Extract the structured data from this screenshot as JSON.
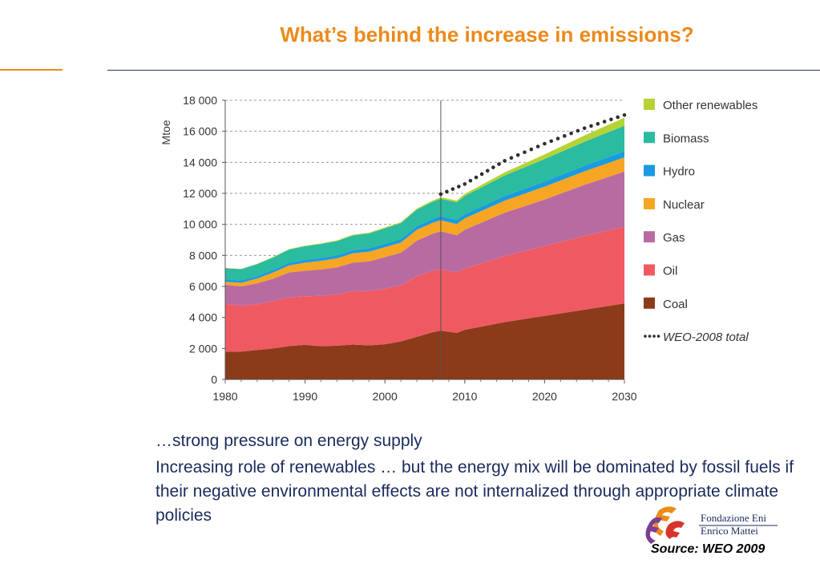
{
  "title": "What’s behind the increase in emissions?",
  "chart_data": {
    "type": "area",
    "stacked": true,
    "ylabel": "Mtoe",
    "ylim": [
      0,
      18000
    ],
    "y_ticks": [
      0,
      2000,
      4000,
      6000,
      8000,
      10000,
      12000,
      14000,
      16000,
      18000
    ],
    "y_tick_labels": [
      "0",
      "2 000",
      "4 000",
      "6 000",
      "8 000",
      "10 000",
      "12 000",
      "14 000",
      "16 000",
      "18 000"
    ],
    "xlim": [
      1980,
      2030
    ],
    "x_ticks": [
      1980,
      1990,
      2000,
      2010,
      2020,
      2030
    ],
    "x_tick_labels": [
      "1980",
      "1990",
      "2000",
      "2010",
      "2020",
      "2030"
    ],
    "projection_start": 2007,
    "grid": "horizontal dashed",
    "legend_position": "right",
    "x": [
      1980,
      1982,
      1984,
      1986,
      1988,
      1990,
      1992,
      1994,
      1996,
      1998,
      2000,
      2002,
      2004,
      2006,
      2007,
      2009,
      2010,
      2015,
      2020,
      2025,
      2030
    ],
    "series": [
      {
        "name": "Coal",
        "color": "#8b3a1a",
        "values": [
          1780,
          1800,
          1900,
          2000,
          2150,
          2230,
          2140,
          2180,
          2250,
          2200,
          2270,
          2450,
          2750,
          3050,
          3150,
          3000,
          3200,
          3700,
          4100,
          4500,
          4900
        ]
      },
      {
        "name": "Oil",
        "color": "#ef5a62",
        "values": [
          3100,
          2950,
          2950,
          3050,
          3150,
          3130,
          3250,
          3300,
          3430,
          3510,
          3570,
          3620,
          3900,
          3950,
          3950,
          3900,
          3950,
          4250,
          4500,
          4750,
          4950
        ]
      },
      {
        "name": "Gas",
        "color": "#b86ba1",
        "values": [
          1230,
          1250,
          1350,
          1450,
          1600,
          1650,
          1700,
          1750,
          1850,
          1900,
          2050,
          2100,
          2300,
          2400,
          2450,
          2400,
          2500,
          2800,
          3000,
          3300,
          3550
        ]
      },
      {
        "name": "Nuclear",
        "color": "#f6a623",
        "values": [
          190,
          230,
          310,
          400,
          450,
          520,
          560,
          580,
          610,
          630,
          640,
          660,
          700,
          710,
          720,
          720,
          740,
          780,
          830,
          870,
          920
        ]
      },
      {
        "name": "Hydro",
        "color": "#1a9be0",
        "values": [
          150,
          160,
          165,
          170,
          175,
          180,
          185,
          195,
          205,
          210,
          215,
          220,
          230,
          250,
          260,
          265,
          270,
          300,
          330,
          360,
          390
        ]
      },
      {
        "name": "Biomass",
        "color": "#2bbba0",
        "values": [
          720,
          720,
          760,
          800,
          850,
          880,
          900,
          920,
          940,
          960,
          1000,
          1030,
          1070,
          1100,
          1120,
          1140,
          1170,
          1320,
          1450,
          1550,
          1650
        ]
      },
      {
        "name": "Other renewables",
        "color": "#b5d335",
        "values": [
          20,
          20,
          25,
          30,
          30,
          35,
          40,
          45,
          50,
          55,
          55,
          60,
          70,
          80,
          90,
          110,
          130,
          200,
          300,
          400,
          520
        ]
      }
    ],
    "total_line": {
      "name": "WEO-2008 total",
      "color": "#2f2f2f",
      "x": [
        2007,
        2010,
        2015,
        2020,
        2025,
        2030
      ],
      "values": [
        11950,
        12600,
        14100,
        15200,
        16200,
        17050
      ]
    }
  },
  "text": {
    "line1": "…strong pressure on energy supply",
    "paragraph": "Increasing role of renewables … but the energy mix will be dominated by fossil fuels if their negative environmental effects are not internalized through appropriate climate policies"
  },
  "logo": {
    "line1": "Fondazione Eni",
    "line2": "Enrico Mattei"
  },
  "source": "Source: WEO 2009"
}
